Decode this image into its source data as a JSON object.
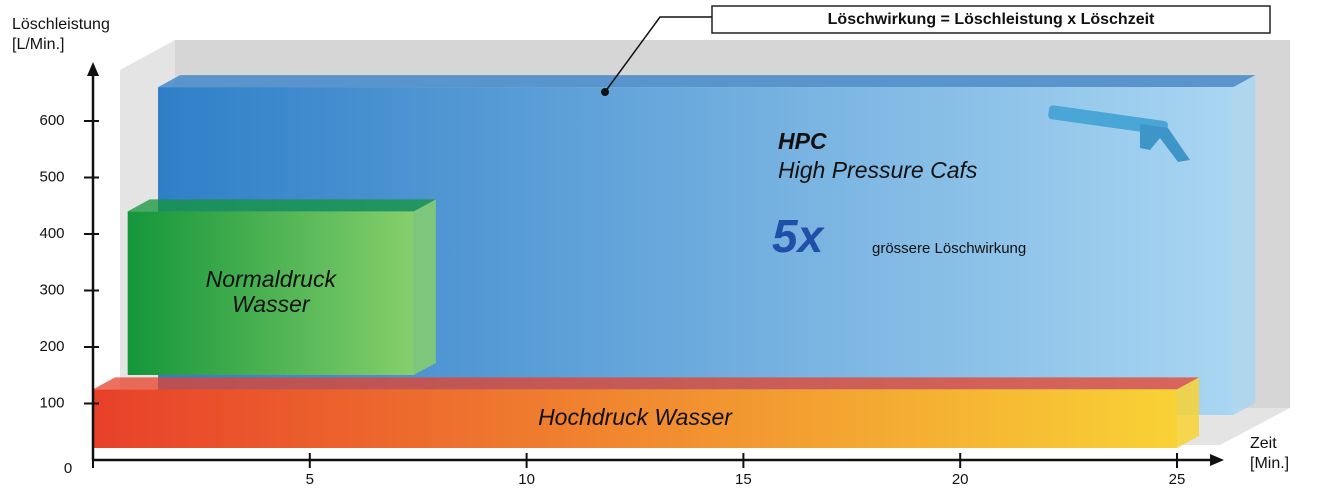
{
  "chart_data": {
    "type": "block",
    "annotation": "Löschwirkung = Löschleistung x Löschzeit",
    "ylabel": [
      "Löschleistung",
      "[L/Min.]"
    ],
    "xlabel": [
      "Zeit",
      "[Min.]"
    ],
    "xlim": [
      0,
      26.5
    ],
    "xticks": [
      0,
      5,
      10,
      15,
      20,
      25
    ],
    "ylim": [
      0,
      700
    ],
    "yticks": [
      100,
      200,
      300,
      400,
      500,
      600
    ],
    "series": [
      {
        "colors": [
          "#2f7fc8",
          "#a9d6f2"
        ],
        "x": [
          1.5,
          26.3
        ],
        "value": 660
      },
      {
        "name_lines": [
          "Normaldruck",
          "Wasser"
        ],
        "colors": [
          "#14963a",
          "#86cf6c"
        ],
        "x": [
          0.8,
          7.4
        ],
        "value": 440
      },
      {
        "name_lines": [
          "Hochdruck Wasser"
        ],
        "colors": [
          "#e8402a",
          "#f9d235"
        ],
        "x": [
          0,
          25
        ],
        "value": 125
      }
    ],
    "hpc_text": {
      "abbr": "HPC",
      "full": "High Pressure Cafs",
      "factor": "5x",
      "note": "grössere Löschwirkung"
    }
  }
}
